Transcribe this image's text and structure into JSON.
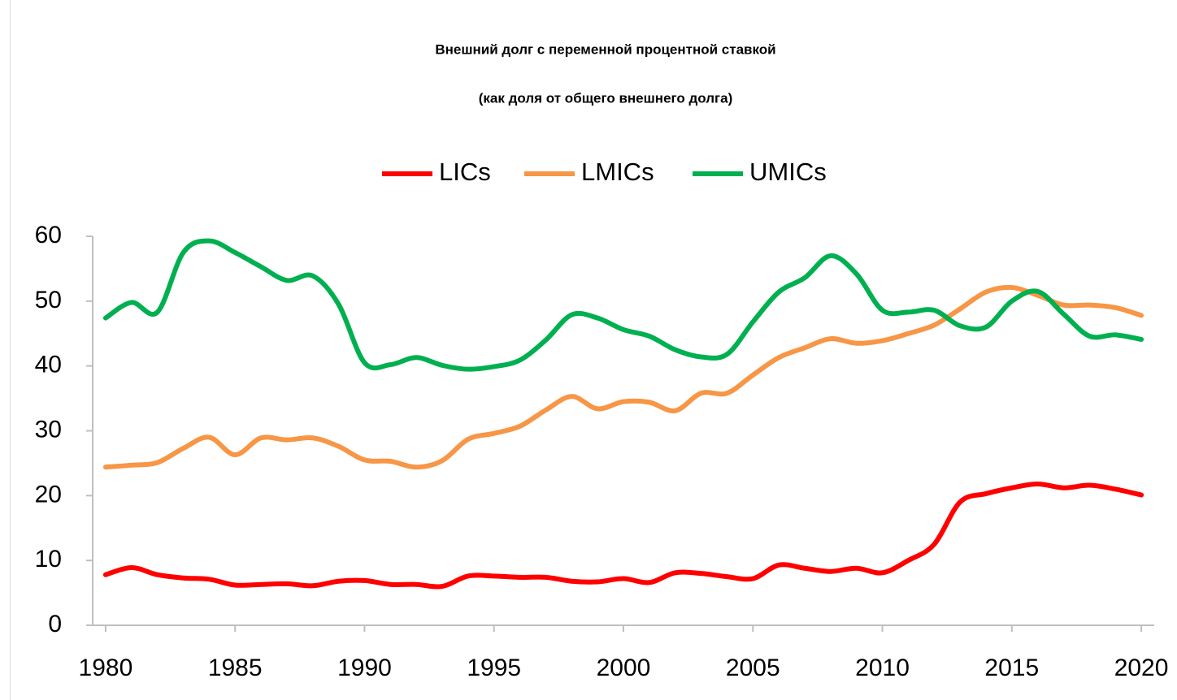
{
  "chart_data": {
    "type": "line",
    "title": "Внешний долг с переменной процентной ставкой",
    "subtitle": "(как доля от общего внешнего долга)",
    "x": [
      1980,
      1981,
      1982,
      1983,
      1984,
      1985,
      1986,
      1987,
      1988,
      1989,
      1990,
      1991,
      1992,
      1993,
      1994,
      1995,
      1996,
      1997,
      1998,
      1999,
      2000,
      2001,
      2002,
      2003,
      2004,
      2005,
      2006,
      2007,
      2008,
      2009,
      2010,
      2011,
      2012,
      2013,
      2014,
      2015,
      2016,
      2017,
      2018,
      2019,
      2020
    ],
    "series": [
      {
        "name": "LICs",
        "color": "#ff0000",
        "values": [
          7.8,
          8.9,
          7.8,
          7.3,
          7.1,
          6.2,
          6.3,
          6.4,
          6.1,
          6.8,
          6.9,
          6.3,
          6.3,
          6.0,
          7.6,
          7.6,
          7.4,
          7.4,
          6.8,
          6.7,
          7.2,
          6.6,
          8.1,
          8.0,
          7.5,
          7.2,
          9.3,
          8.8,
          8.3,
          8.8,
          8.1,
          10.0,
          12.5,
          19.0,
          20.3,
          21.2,
          21.8,
          21.2,
          21.6,
          21.0,
          20.1
        ]
      },
      {
        "name": "LMICs",
        "color": "#f79646",
        "values": [
          24.4,
          24.7,
          25.1,
          27.3,
          29.0,
          26.3,
          28.9,
          28.6,
          28.9,
          27.6,
          25.5,
          25.3,
          24.4,
          25.4,
          28.7,
          29.6,
          30.7,
          33.2,
          35.3,
          33.4,
          34.5,
          34.4,
          33.1,
          35.8,
          35.8,
          38.6,
          41.3,
          42.8,
          44.2,
          43.5,
          43.9,
          45.0,
          46.3,
          48.8,
          51.4,
          52.1,
          50.9,
          49.4,
          49.4,
          49.0,
          47.8
        ]
      },
      {
        "name": "UMICs",
        "color": "#00b050",
        "values": [
          47.4,
          49.8,
          48.3,
          57.5,
          59.3,
          57.5,
          55.3,
          53.2,
          53.9,
          49.5,
          40.5,
          40.2,
          41.3,
          40.1,
          39.5,
          39.9,
          40.9,
          44.0,
          47.9,
          47.4,
          45.6,
          44.6,
          42.5,
          41.4,
          41.8,
          46.8,
          51.4,
          53.6,
          57.0,
          54.2,
          48.6,
          48.3,
          48.6,
          46.2,
          46.0,
          50.0,
          51.5,
          48.0,
          44.6,
          44.8,
          44.1
        ]
      }
    ],
    "xlim": [
      1979.5,
      2020.5
    ],
    "xticks": [
      1980,
      1985,
      1990,
      1995,
      2000,
      2005,
      2010,
      2015,
      2020
    ],
    "ylim": [
      0,
      60
    ],
    "yticks": [
      0,
      10,
      20,
      30,
      40,
      50,
      60
    ],
    "legend": "top",
    "grid": false
  }
}
